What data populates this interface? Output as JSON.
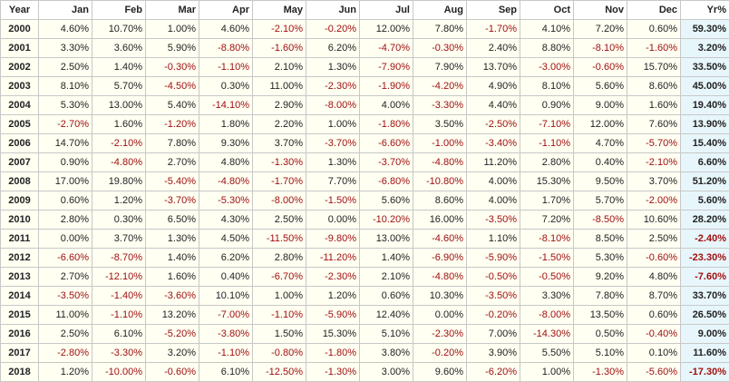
{
  "table": {
    "header": [
      "Year",
      "Jan",
      "Feb",
      "Mar",
      "Apr",
      "May",
      "Jun",
      "Jul",
      "Aug",
      "Sep",
      "Oct",
      "Nov",
      "Dec",
      "Yr%"
    ],
    "rows": [
      [
        "2000",
        "4.60%",
        "10.70%",
        "1.00%",
        "4.60%",
        "-2.10%",
        "-0.20%",
        "12.00%",
        "7.80%",
        "-1.70%",
        "4.10%",
        "7.20%",
        "0.60%",
        "59.30%"
      ],
      [
        "2001",
        "3.30%",
        "3.60%",
        "5.90%",
        "-8.80%",
        "-1.60%",
        "6.20%",
        "-4.70%",
        "-0.30%",
        "2.40%",
        "8.80%",
        "-8.10%",
        "-1.60%",
        "3.20%"
      ],
      [
        "2002",
        "2.50%",
        "1.40%",
        "-0.30%",
        "-1.10%",
        "2.10%",
        "1.30%",
        "-7.90%",
        "7.90%",
        "13.70%",
        "-3.00%",
        "-0.60%",
        "15.70%",
        "33.50%"
      ],
      [
        "2003",
        "8.10%",
        "5.70%",
        "-4.50%",
        "0.30%",
        "11.00%",
        "-2.30%",
        "-1.90%",
        "-4.20%",
        "4.90%",
        "8.10%",
        "5.60%",
        "8.60%",
        "45.00%"
      ],
      [
        "2004",
        "5.30%",
        "13.00%",
        "5.40%",
        "-14.10%",
        "2.90%",
        "-8.00%",
        "4.00%",
        "-3.30%",
        "4.40%",
        "0.90%",
        "9.00%",
        "1.60%",
        "19.40%"
      ],
      [
        "2005",
        "-2.70%",
        "1.60%",
        "-1.20%",
        "1.80%",
        "2.20%",
        "1.00%",
        "-1.80%",
        "3.50%",
        "-2.50%",
        "-7.10%",
        "12.00%",
        "7.60%",
        "13.90%"
      ],
      [
        "2006",
        "14.70%",
        "-2.10%",
        "7.80%",
        "9.30%",
        "3.70%",
        "-3.70%",
        "-6.60%",
        "-1.00%",
        "-3.40%",
        "-1.10%",
        "4.70%",
        "-5.70%",
        "15.40%"
      ],
      [
        "2007",
        "0.90%",
        "-4.80%",
        "2.70%",
        "4.80%",
        "-1.30%",
        "1.30%",
        "-3.70%",
        "-4.80%",
        "11.20%",
        "2.80%",
        "0.40%",
        "-2.10%",
        "6.60%"
      ],
      [
        "2008",
        "17.00%",
        "19.80%",
        "-5.40%",
        "-4.80%",
        "-1.70%",
        "7.70%",
        "-6.80%",
        "-10.80%",
        "4.00%",
        "15.30%",
        "9.50%",
        "3.70%",
        "51.20%"
      ],
      [
        "2009",
        "0.60%",
        "1.20%",
        "-3.70%",
        "-5.30%",
        "-8.00%",
        "-1.50%",
        "5.60%",
        "8.60%",
        "4.00%",
        "1.70%",
        "5.70%",
        "-2.00%",
        "5.60%"
      ],
      [
        "2010",
        "2.80%",
        "0.30%",
        "6.50%",
        "4.30%",
        "2.50%",
        "0.00%",
        "-10.20%",
        "16.00%",
        "-3.50%",
        "7.20%",
        "-8.50%",
        "10.60%",
        "28.20%"
      ],
      [
        "2011",
        "0.00%",
        "3.70%",
        "1.30%",
        "4.50%",
        "-11.50%",
        "-9.80%",
        "13.00%",
        "-4.60%",
        "1.10%",
        "-8.10%",
        "8.50%",
        "2.50%",
        "-2.40%"
      ],
      [
        "2012",
        "-6.60%",
        "-8.70%",
        "1.40%",
        "6.20%",
        "2.80%",
        "-11.20%",
        "1.40%",
        "-6.90%",
        "-5.90%",
        "-1.50%",
        "5.30%",
        "-0.60%",
        "-23.30%"
      ],
      [
        "2013",
        "2.70%",
        "-12.10%",
        "1.60%",
        "0.40%",
        "-6.70%",
        "-2.30%",
        "2.10%",
        "-4.80%",
        "-0.50%",
        "-0.50%",
        "9.20%",
        "4.80%",
        "-7.60%"
      ],
      [
        "2014",
        "-3.50%",
        "-1.40%",
        "-3.60%",
        "10.10%",
        "1.00%",
        "1.20%",
        "0.60%",
        "10.30%",
        "-3.50%",
        "3.30%",
        "7.80%",
        "8.70%",
        "33.70%"
      ],
      [
        "2015",
        "11.00%",
        "-1.10%",
        "13.20%",
        "-7.00%",
        "-1.10%",
        "-5.90%",
        "12.40%",
        "0.00%",
        "-0.20%",
        "-8.00%",
        "13.50%",
        "0.60%",
        "26.50%"
      ],
      [
        "2016",
        "2.50%",
        "6.10%",
        "-5.20%",
        "-3.80%",
        "1.50%",
        "15.30%",
        "5.10%",
        "-2.30%",
        "7.00%",
        "-14.30%",
        "0.50%",
        "-0.40%",
        "9.00%"
      ],
      [
        "2017",
        "-2.80%",
        "-3.30%",
        "3.20%",
        "-1.10%",
        "-0.80%",
        "-1.80%",
        "3.80%",
        "-0.20%",
        "3.90%",
        "5.50%",
        "5.10%",
        "0.10%",
        "11.60%"
      ],
      [
        "2018",
        "1.20%",
        "-10.00%",
        "-0.60%",
        "6.10%",
        "-12.50%",
        "-1.30%",
        "3.00%",
        "9.60%",
        "-6.20%",
        "1.00%",
        "-1.30%",
        "-5.60%",
        "-17.30%"
      ]
    ]
  }
}
